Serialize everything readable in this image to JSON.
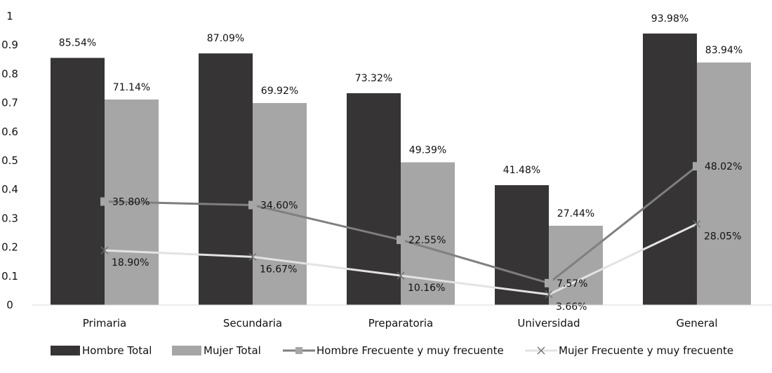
{
  "chart_data": {
    "type": "bar",
    "categories": [
      "Primaria",
      "Secundaria",
      "Preparatoria",
      "Universidad",
      "General"
    ],
    "ylim": [
      0,
      1
    ],
    "yticks": [
      0,
      0.1,
      0.2,
      0.3,
      0.4,
      0.5,
      0.6,
      0.7,
      0.8,
      0.9,
      1
    ],
    "ytick_labels": [
      "0",
      "0.1",
      "0.2",
      "0.3",
      "0.4",
      "0.5",
      "0.6",
      "0.7",
      "0.8",
      "0.9",
      "1"
    ],
    "grid": false,
    "legend_position": "bottom",
    "series": [
      {
        "name": "Hombre Total",
        "kind": "bar",
        "color": "#363434",
        "values": [
          0.8554,
          0.8709,
          0.7332,
          0.4148,
          0.9398
        ],
        "labels": [
          "85.54%",
          "87.09%",
          "73.32%",
          "41.48%",
          "93.98%"
        ]
      },
      {
        "name": "Mujer Total",
        "kind": "bar",
        "color": "#a6a6a6",
        "values": [
          0.7114,
          0.6992,
          0.4939,
          0.2744,
          0.8394
        ],
        "labels": [
          "71.14%",
          "69.92%",
          "49.39%",
          "27.44%",
          "83.94%"
        ]
      },
      {
        "name": "Hombre Frecuente y muy frecuente",
        "kind": "line",
        "marker": "square",
        "color": "#7f7f7f",
        "values": [
          0.358,
          0.346,
          0.2255,
          0.0757,
          0.4802
        ],
        "labels": [
          "35.80%",
          "34.60%",
          "22.55%",
          "7.57%",
          "48.02%"
        ]
      },
      {
        "name": "Mujer Frecuente y muy frecuente",
        "kind": "line",
        "marker": "x",
        "color": "#e3e3e3",
        "marker_color": "#6f6f6f",
        "values": [
          0.189,
          0.1667,
          0.1016,
          0.0366,
          0.2805
        ],
        "labels": [
          "18.90%",
          "16.67%",
          "10.16%",
          "3.66%",
          "28.05%"
        ]
      }
    ]
  }
}
